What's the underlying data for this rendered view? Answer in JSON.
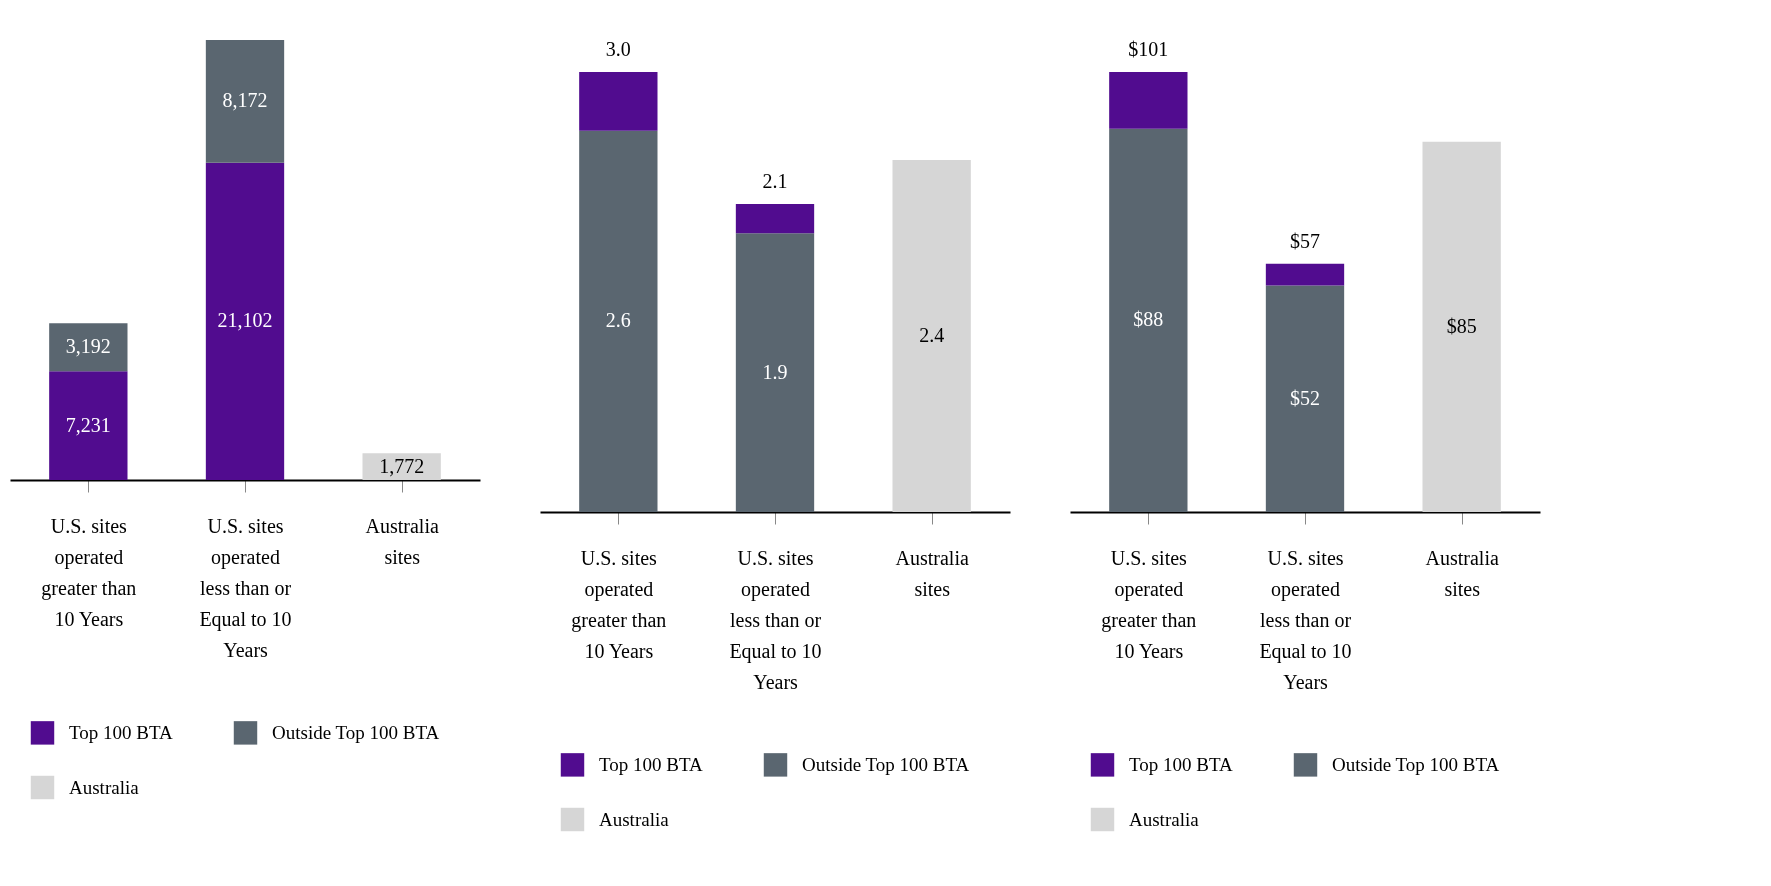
{
  "chart_data": [
    {
      "type": "bar",
      "stacked": true,
      "legend": "bottom",
      "categories": [
        "U.S. sites operated greater than 10 Years",
        "U.S. sites operated less than or Equal to 10 Years",
        "Australia sites"
      ],
      "series": [
        {
          "name": "Top 100 BTA",
          "color": "#510c8f",
          "values": [
            7231,
            21102,
            null
          ],
          "value_labels": [
            "7,231",
            "21,102",
            null
          ]
        },
        {
          "name": "Outside Top 100 BTA",
          "color": "#5a6670",
          "values": [
            3192,
            8172,
            null
          ],
          "value_labels": [
            "3,192",
            "8,172",
            null
          ]
        },
        {
          "name": "Australia",
          "color": "#d6d6d6",
          "values": [
            null,
            null,
            1772
          ],
          "value_labels": [
            null,
            null,
            "1,772"
          ]
        }
      ]
    },
    {
      "type": "bar",
      "stacked": true,
      "legend": "bottom",
      "categories": [
        "U.S. sites operated greater than 10 Years",
        "U.S. sites operated less than or Equal to 10 Years",
        "Australia sites"
      ],
      "totals": [
        "3.0",
        "2.1",
        null
      ],
      "series": [
        {
          "name": "Outside Top 100 BTA",
          "color": "#5a6670",
          "values": [
            2.6,
            1.9,
            null
          ],
          "value_labels": [
            "2.6",
            "1.9",
            null
          ]
        },
        {
          "name": "Top 100 BTA",
          "color": "#510c8f",
          "values": [
            0.4,
            0.2,
            null
          ]
        },
        {
          "name": "Australia",
          "color": "#d6d6d6",
          "values": [
            null,
            null,
            2.4
          ],
          "value_labels": [
            null,
            null,
            "2.4"
          ]
        }
      ]
    },
    {
      "type": "bar",
      "stacked": true,
      "legend": "bottom",
      "categories": [
        "U.S. sites operated greater than 10 Years",
        "U.S. sites operated less than or Equal to 10 Years",
        "Australia sites"
      ],
      "totals": [
        "$101",
        "$57",
        null
      ],
      "series": [
        {
          "name": "Outside Top 100 BTA",
          "color": "#5a6670",
          "values": [
            88,
            52,
            null
          ],
          "value_labels": [
            "$88",
            "$52",
            null
          ]
        },
        {
          "name": "Top 100 BTA",
          "color": "#510c8f",
          "values": [
            13,
            5,
            null
          ]
        },
        {
          "name": "Australia",
          "color": "#d6d6d6",
          "values": [
            null,
            null,
            85
          ],
          "value_labels": [
            null,
            null,
            "$85"
          ]
        }
      ]
    }
  ]
}
